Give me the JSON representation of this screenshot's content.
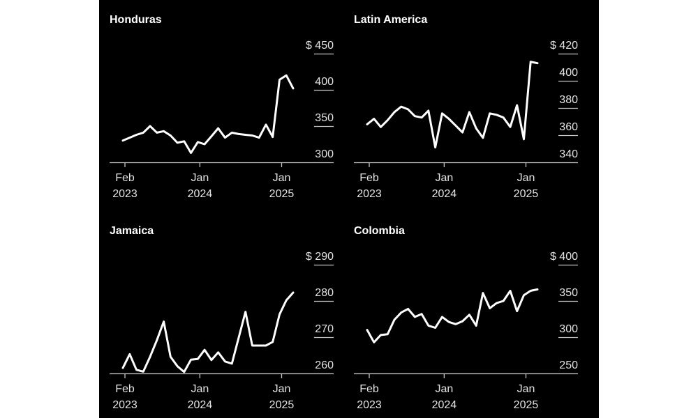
{
  "colors": {
    "page_bg": "#ffffff",
    "canvas_bg": "#000000",
    "line": "#ffffff",
    "axis": "#c4c4c4",
    "tick_label": "#e3e3e3",
    "title": "#ffffff"
  },
  "chart_data": [
    {
      "type": "line",
      "title": "Honduras",
      "unit_prefix": "$",
      "legend": "none",
      "grid": "right-side tick dashes",
      "ylim": [
        300,
        450
      ],
      "y_tick_labels": [
        "$ 450",
        "400",
        "350",
        "300"
      ],
      "x_tick_indices": [
        0,
        11,
        23
      ],
      "x_tick_labels": [
        {
          "month": "Feb",
          "year": "2023"
        },
        {
          "month": "Jan",
          "year": "2024"
        },
        {
          "month": "Jan",
          "year": "2025"
        }
      ],
      "categories": [
        "Feb 2023",
        "Mar 2023",
        "Apr 2023",
        "May 2023",
        "Jun 2023",
        "Jul 2023",
        "Aug 2023",
        "Sep 2023",
        "Oct 2023",
        "Nov 2023",
        "Dec 2023",
        "Jan 2024",
        "Feb 2024",
        "Mar 2024",
        "Apr 2024",
        "May 2024",
        "Jun 2024",
        "Jul 2024",
        "Aug 2024",
        "Sep 2024",
        "Oct 2024",
        "Nov 2024",
        "Dec 2024",
        "Jan 2025",
        "Feb 2025",
        "Mar 2025"
      ],
      "values": [
        330,
        334,
        338,
        341,
        350,
        341,
        343,
        337,
        327,
        329,
        313,
        328,
        325,
        336,
        347,
        334,
        341,
        339,
        338,
        337,
        334,
        352,
        335,
        414,
        420,
        402
      ]
    },
    {
      "type": "line",
      "title": "Latin America",
      "unit_prefix": "$",
      "legend": "none",
      "grid": "right-side tick dashes",
      "ylim": [
        340,
        420
      ],
      "y_tick_labels": [
        "$ 420",
        "400",
        "380",
        "360",
        "340"
      ],
      "x_tick_indices": [
        0,
        11,
        23
      ],
      "x_tick_labels": [
        {
          "month": "Feb",
          "year": "2023"
        },
        {
          "month": "Jan",
          "year": "2024"
        },
        {
          "month": "Jan",
          "year": "2025"
        }
      ],
      "categories": [
        "Feb 2023",
        "Mar 2023",
        "Apr 2023",
        "May 2023",
        "Jun 2023",
        "Jul 2023",
        "Aug 2023",
        "Sep 2023",
        "Oct 2023",
        "Nov 2023",
        "Dec 2023",
        "Jan 2024",
        "Feb 2024",
        "Mar 2024",
        "Apr 2024",
        "May 2024",
        "Jun 2024",
        "Jul 2024",
        "Aug 2024",
        "Sep 2024",
        "Oct 2024",
        "Nov 2024",
        "Dec 2024",
        "Jan 2025",
        "Feb 2025",
        "Mar 2025"
      ],
      "values": [
        368,
        372,
        366,
        371,
        377,
        381,
        379,
        374,
        373,
        378,
        351,
        376,
        372,
        367,
        362,
        377,
        365,
        358,
        376,
        375,
        373,
        366,
        382,
        357,
        414,
        413
      ]
    },
    {
      "type": "line",
      "title": "Jamaica",
      "unit_prefix": "$",
      "legend": "none",
      "grid": "right-side tick dashes",
      "ylim": [
        260,
        290
      ],
      "y_tick_labels": [
        "$ 290",
        "280",
        "270",
        "260"
      ],
      "x_tick_indices": [
        0,
        11,
        23
      ],
      "x_tick_labels": [
        {
          "month": "Feb",
          "year": "2023"
        },
        {
          "month": "Jan",
          "year": "2024"
        },
        {
          "month": "Jan",
          "year": "2025"
        }
      ],
      "categories": [
        "Feb 2023",
        "Mar 2023",
        "Apr 2023",
        "May 2023",
        "Jun 2023",
        "Jul 2023",
        "Aug 2023",
        "Sep 2023",
        "Oct 2023",
        "Nov 2023",
        "Dec 2023",
        "Jan 2024",
        "Feb 2024",
        "Mar 2024",
        "Apr 2024",
        "May 2024",
        "Jun 2024",
        "Jul 2024",
        "Aug 2024",
        "Sep 2024",
        "Oct 2024",
        "Nov 2024",
        "Dec 2024",
        "Jan 2025",
        "Feb 2025",
        "Mar 2025"
      ],
      "values": [
        261.5,
        265.3,
        261,
        260.5,
        264.6,
        269.2,
        274.3,
        264.6,
        262,
        260.4,
        263.8,
        264,
        266.5,
        263.7,
        265.8,
        263.3,
        262.7,
        269.8,
        277,
        267.7,
        267.7,
        267.7,
        268.7,
        276.3,
        280.2,
        282.3
      ]
    },
    {
      "type": "line",
      "title": "Colombia",
      "unit_prefix": "$",
      "legend": "none",
      "grid": "right-side tick dashes",
      "ylim": [
        250,
        400
      ],
      "y_tick_labels": [
        "$ 400",
        "350",
        "300",
        "250"
      ],
      "x_tick_indices": [
        0,
        11,
        23
      ],
      "x_tick_labels": [
        {
          "month": "Feb",
          "year": "2023"
        },
        {
          "month": "Jan",
          "year": "2024"
        },
        {
          "month": "Jan",
          "year": "2025"
        }
      ],
      "categories": [
        "Feb 2023",
        "Mar 2023",
        "Apr 2023",
        "May 2023",
        "Jun 2023",
        "Jul 2023",
        "Aug 2023",
        "Sep 2023",
        "Oct 2023",
        "Nov 2023",
        "Dec 2023",
        "Jan 2024",
        "Feb 2024",
        "Mar 2024",
        "Apr 2024",
        "May 2024",
        "Jun 2024",
        "Jul 2024",
        "Aug 2024",
        "Sep 2024",
        "Oct 2024",
        "Nov 2024",
        "Dec 2024",
        "Jan 2025",
        "Feb 2025",
        "Mar 2025"
      ],
      "values": [
        310,
        293,
        303,
        304,
        324,
        334,
        339,
        328,
        332,
        316,
        313,
        328,
        321,
        318,
        322,
        331,
        316,
        361,
        340,
        347,
        350,
        364,
        336,
        358,
        364,
        366
      ]
    }
  ]
}
